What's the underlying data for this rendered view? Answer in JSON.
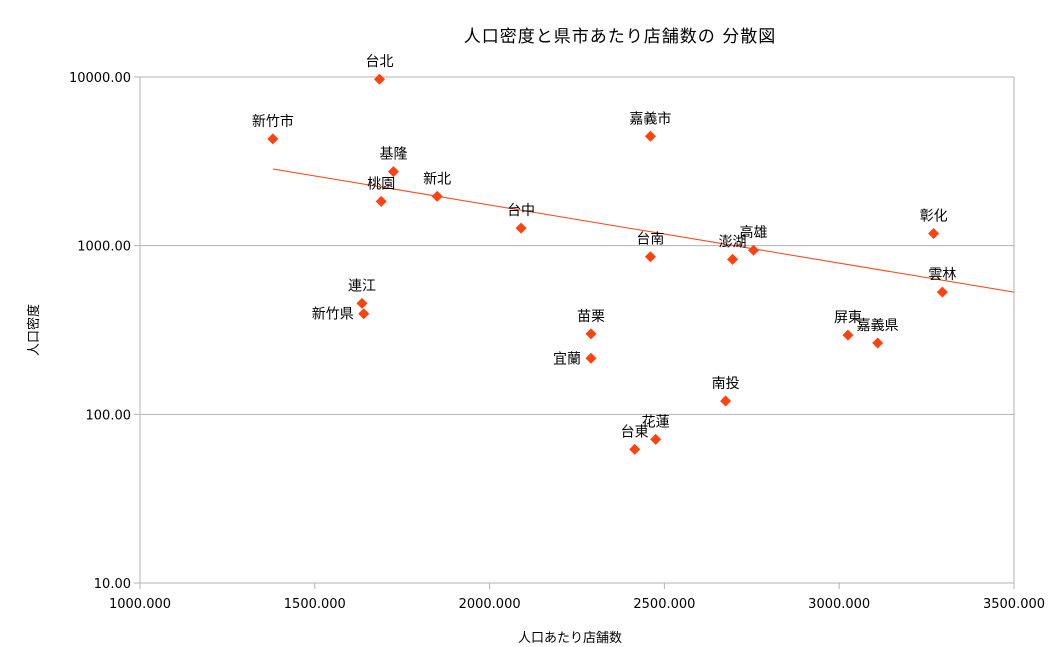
{
  "chart_data": {
    "type": "scatter",
    "title": "人口密度と県市あたり店舗数の 分散図",
    "xlabel": "人口あたり店舗数",
    "ylabel": "人口密度",
    "xlim": [
      1000,
      3500
    ],
    "ylim": [
      10,
      10000
    ],
    "y_scale": "log",
    "x_ticks": [
      1000,
      1500,
      2000,
      2500,
      3000,
      3500
    ],
    "x_tick_labels": [
      "1000.000",
      "1500.000",
      "2000.000",
      "2500.000",
      "3000.000",
      "3500.000"
    ],
    "y_ticks": [
      10,
      100,
      1000,
      10000
    ],
    "y_tick_labels": [
      "10.00",
      "100.00",
      "1000.00",
      "10000.00"
    ],
    "grid": "horizontal",
    "marker_color": "#ff420e",
    "trendline_color": "#ff420e",
    "trendline": {
      "type": "exponential",
      "x": [
        1380,
        3500
      ],
      "y": [
        2850,
        530
      ]
    },
    "points": [
      {
        "label": "台北",
        "x": 1685,
        "y": 9700
      },
      {
        "label": "新竹市",
        "x": 1380,
        "y": 4300
      },
      {
        "label": "嘉義市",
        "x": 2460,
        "y": 4450
      },
      {
        "label": "基隆",
        "x": 1725,
        "y": 2750
      },
      {
        "label": "桃園",
        "x": 1690,
        "y": 1830
      },
      {
        "label": "新北",
        "x": 1850,
        "y": 1960
      },
      {
        "label": "台中",
        "x": 2090,
        "y": 1270
      },
      {
        "label": "彰化",
        "x": 3270,
        "y": 1180
      },
      {
        "label": "台南",
        "x": 2460,
        "y": 860
      },
      {
        "label": "澎湖",
        "x": 2695,
        "y": 830
      },
      {
        "label": "高雄",
        "x": 2755,
        "y": 940
      },
      {
        "label": "雲林",
        "x": 3295,
        "y": 530
      },
      {
        "label": "連江",
        "x": 1635,
        "y": 455
      },
      {
        "label": "新竹県",
        "x": 1640,
        "y": 395
      },
      {
        "label": "苗栗",
        "x": 2290,
        "y": 300
      },
      {
        "label": "屏東",
        "x": 3025,
        "y": 295
      },
      {
        "label": "嘉義県",
        "x": 3110,
        "y": 265
      },
      {
        "label": "宜蘭",
        "x": 2290,
        "y": 215
      },
      {
        "label": "南投",
        "x": 2675,
        "y": 120
      },
      {
        "label": "花蓮",
        "x": 2475,
        "y": 71
      },
      {
        "label": "台東",
        "x": 2415,
        "y": 62
      }
    ]
  }
}
